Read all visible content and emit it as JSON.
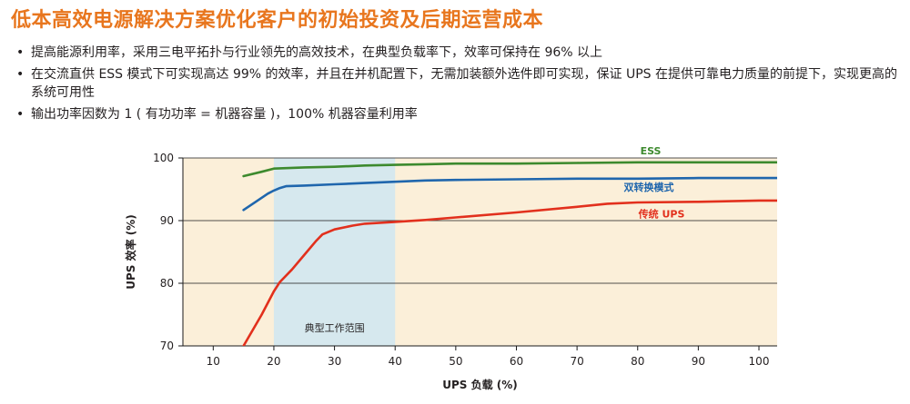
{
  "title": "低本高效电源解决方案优化客户的初始投资及后期运营成本",
  "bullets": [
    "提高能源利用率，采用三电平拓扑与行业领先的高效技术，在典型负载率下，效率可保持在 96% 以上",
    "在交流直供 ESS 模式下可实现高达 99% 的效率，并且在并机配置下，无需加装额外选件即可实现，保证 UPS 在提供可靠电力质量的前提下，实现更高的系统可用性",
    "输出功率因数为 1 ( 有功功率 = 机器容量 )，100% 机器容量利用率"
  ],
  "bullet_marker": "•",
  "colors": {
    "title": "#e8761e",
    "ess": "#3d8a2e",
    "dual": "#1f66ad",
    "ups": "#e2301d",
    "typical_band": "#d6e8ee",
    "plot_bg": "#fbefd9"
  },
  "chart_data": {
    "type": "line",
    "xlabel": "UPS 负载 (%)",
    "ylabel": "UPS 效率 (%)",
    "xlim": [
      5,
      103
    ],
    "ylim": [
      70,
      100
    ],
    "xticks": [
      "10",
      "20",
      "30",
      "40",
      "50",
      "60",
      "70",
      "80",
      "90",
      "100"
    ],
    "yticks": [
      "70",
      "80",
      "90",
      "100"
    ],
    "grid": "horizontal",
    "band": {
      "label": "典型工作范围",
      "x": [
        20,
        40
      ]
    },
    "series": [
      {
        "name": "ESS",
        "color": "#3d8a2e",
        "x": [
          15,
          18,
          20,
          25,
          30,
          35,
          40,
          45,
          50,
          60,
          70,
          80,
          90,
          100,
          103
        ],
        "y": [
          97.1,
          97.8,
          98.3,
          98.5,
          98.6,
          98.8,
          98.9,
          99.0,
          99.1,
          99.1,
          99.2,
          99.3,
          99.3,
          99.3,
          99.3
        ]
      },
      {
        "name": "双转换模式",
        "color": "#1f66ad",
        "x": [
          15,
          17,
          19,
          20,
          21,
          22,
          25,
          30,
          35,
          40,
          45,
          50,
          60,
          70,
          80,
          90,
          100,
          103
        ],
        "y": [
          91.7,
          93.0,
          94.3,
          94.8,
          95.2,
          95.5,
          95.6,
          95.8,
          96.0,
          96.2,
          96.4,
          96.5,
          96.6,
          96.7,
          96.7,
          96.8,
          96.8,
          96.8
        ]
      },
      {
        "name": "传统 UPS",
        "color": "#e2301d",
        "x": [
          15,
          18,
          20,
          21,
          23,
          25,
          27,
          28,
          30,
          33,
          35,
          40,
          45,
          50,
          60,
          70,
          75,
          80,
          90,
          100,
          103
        ],
        "y": [
          70.0,
          75.0,
          78.7,
          80.2,
          82.2,
          84.5,
          86.8,
          87.8,
          88.6,
          89.2,
          89.5,
          89.8,
          90.1,
          90.5,
          91.3,
          92.2,
          92.7,
          92.9,
          93.0,
          93.2,
          93.2
        ]
      }
    ]
  }
}
